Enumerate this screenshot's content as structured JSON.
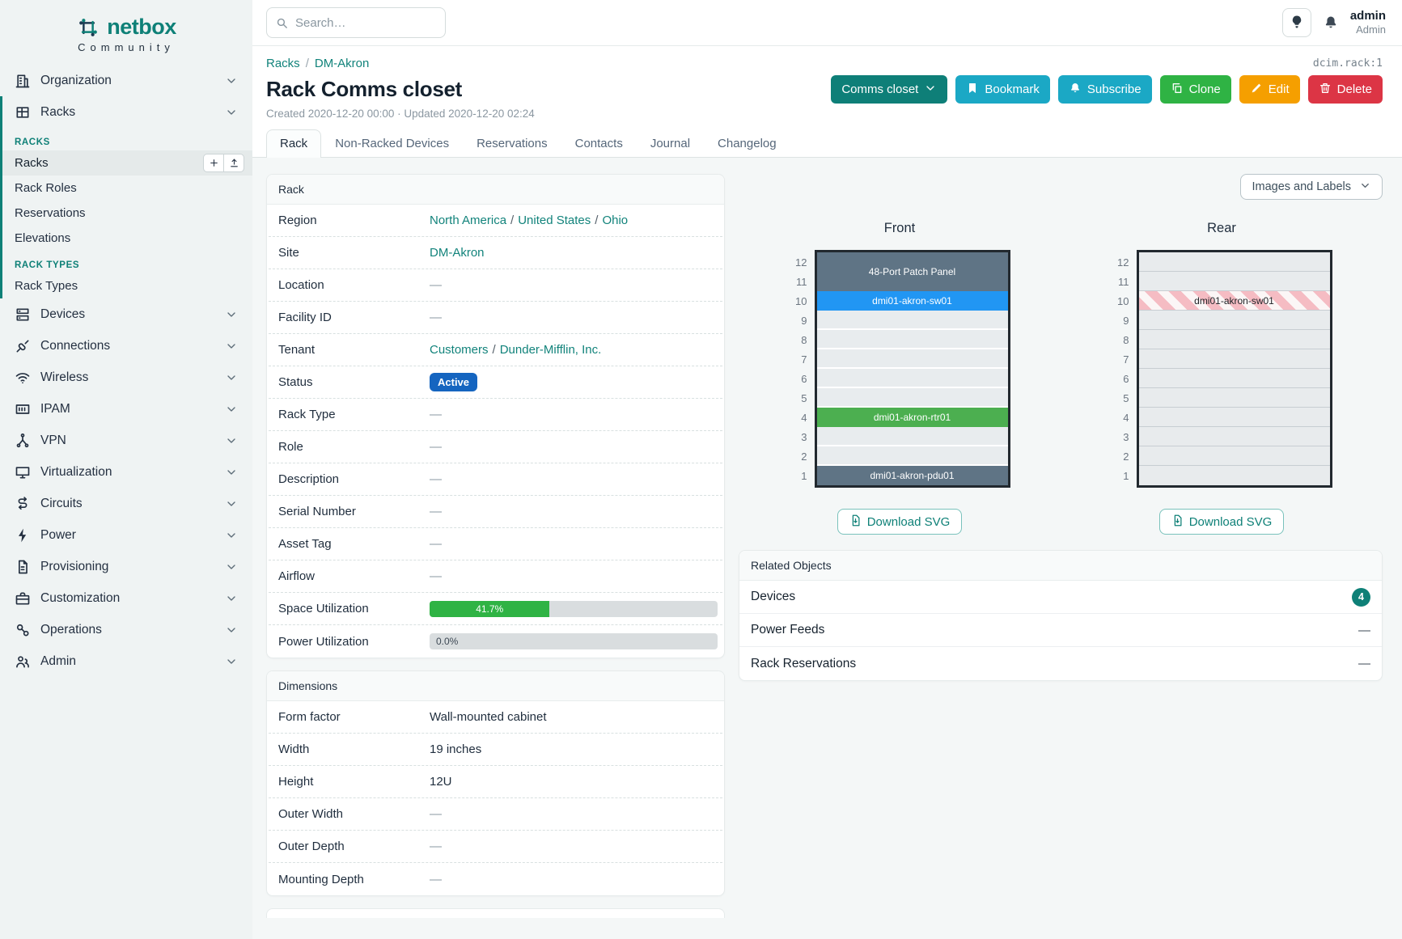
{
  "app": {
    "brand": "netbox",
    "brand_sub": "Community"
  },
  "topbar": {
    "search_placeholder": "Search…",
    "user_name": "admin",
    "user_role": "Admin"
  },
  "sidebar": {
    "top_items": [
      {
        "label": "Organization",
        "icon": "building-icon"
      },
      {
        "label": "Racks",
        "icon": "rack-icon"
      }
    ],
    "racks_menu": {
      "sections": [
        {
          "header": "RACKS",
          "items": [
            {
              "label": "Racks",
              "active": true
            },
            {
              "label": "Rack Roles"
            },
            {
              "label": "Reservations"
            },
            {
              "label": "Elevations"
            }
          ]
        },
        {
          "header": "RACK TYPES",
          "items": [
            {
              "label": "Rack Types"
            }
          ]
        }
      ]
    },
    "items": [
      {
        "label": "Devices",
        "icon": "devices-icon"
      },
      {
        "label": "Connections",
        "icon": "connections-icon"
      },
      {
        "label": "Wireless",
        "icon": "wireless-icon"
      },
      {
        "label": "IPAM",
        "icon": "ipam-icon"
      },
      {
        "label": "VPN",
        "icon": "vpn-icon"
      },
      {
        "label": "Virtualization",
        "icon": "virtualization-icon"
      },
      {
        "label": "Circuits",
        "icon": "circuits-icon"
      },
      {
        "label": "Power",
        "icon": "power-icon"
      },
      {
        "label": "Provisioning",
        "icon": "provisioning-icon"
      },
      {
        "label": "Customization",
        "icon": "customization-icon"
      },
      {
        "label": "Operations",
        "icon": "operations-icon"
      },
      {
        "label": "Admin",
        "icon": "admin-icon"
      }
    ]
  },
  "breadcrumb": {
    "items": [
      "Racks",
      "DM-Akron"
    ]
  },
  "object_id": "dcim.rack:1",
  "page": {
    "title": "Rack Comms closet",
    "meta": "Created 2020-12-20 00:00 · Updated 2020-12-20 02:24"
  },
  "actions": {
    "context": "Comms closet",
    "bookmark": "Bookmark",
    "subscribe": "Subscribe",
    "clone": "Clone",
    "edit": "Edit",
    "delete": "Delete"
  },
  "tabs": [
    {
      "label": "Rack",
      "active": true
    },
    {
      "label": "Non-Racked Devices"
    },
    {
      "label": "Reservations"
    },
    {
      "label": "Contacts"
    },
    {
      "label": "Journal"
    },
    {
      "label": "Changelog"
    }
  ],
  "rack_panel": {
    "title": "Rack",
    "rows": [
      {
        "label": "Region",
        "kind": "links",
        "parts": [
          "North America",
          "United States",
          "Ohio"
        ]
      },
      {
        "label": "Site",
        "kind": "links",
        "parts": [
          "DM-Akron"
        ]
      },
      {
        "label": "Location",
        "kind": "text",
        "value": "—"
      },
      {
        "label": "Facility ID",
        "kind": "text",
        "value": "—"
      },
      {
        "label": "Tenant",
        "kind": "links",
        "parts": [
          "Customers",
          "Dunder-Mifflin, Inc."
        ]
      },
      {
        "label": "Status",
        "kind": "badge",
        "value": "Active"
      },
      {
        "label": "Rack Type",
        "kind": "text",
        "value": "—"
      },
      {
        "label": "Role",
        "kind": "text",
        "value": "—"
      },
      {
        "label": "Description",
        "kind": "text",
        "value": "—"
      },
      {
        "label": "Serial Number",
        "kind": "text",
        "value": "—"
      },
      {
        "label": "Asset Tag",
        "kind": "text",
        "value": "—"
      },
      {
        "label": "Airflow",
        "kind": "text",
        "value": "—"
      },
      {
        "label": "Space Utilization",
        "kind": "progress",
        "percent": 41.7,
        "value": "41.7%"
      },
      {
        "label": "Power Utilization",
        "kind": "progress",
        "percent": 0,
        "value": "0.0%"
      }
    ]
  },
  "dimensions_panel": {
    "title": "Dimensions",
    "rows": [
      {
        "label": "Form factor",
        "kind": "text",
        "value": "Wall-mounted cabinet"
      },
      {
        "label": "Width",
        "kind": "text",
        "value": "19 inches"
      },
      {
        "label": "Height",
        "kind": "text",
        "value": "12U"
      },
      {
        "label": "Outer Width",
        "kind": "text",
        "value": "—"
      },
      {
        "label": "Outer Depth",
        "kind": "text",
        "value": "—"
      },
      {
        "label": "Mounting Depth",
        "kind": "text",
        "value": "—"
      }
    ]
  },
  "elevation": {
    "toggle_label": "Images and Labels",
    "download_label": "Download SVG",
    "units_total": 12,
    "front": {
      "title": "Front",
      "slots": [
        {
          "u": 2,
          "label": "48-Port Patch Panel",
          "color": "#5f7485"
        },
        {
          "u": 1,
          "label": "dmi01-akron-sw01",
          "color": "#2196f3"
        },
        {
          "u": 1
        },
        {
          "u": 1
        },
        {
          "u": 1
        },
        {
          "u": 1
        },
        {
          "u": 1
        },
        {
          "u": 1,
          "label": "dmi01-akron-rtr01",
          "color": "#4caf50"
        },
        {
          "u": 1
        },
        {
          "u": 1
        },
        {
          "u": 1,
          "label": "dmi01-akron-pdu01",
          "color": "#5f7485"
        }
      ]
    },
    "rear": {
      "title": "Rear",
      "slots": [
        {
          "u": 1
        },
        {
          "u": 1
        },
        {
          "u": 1,
          "label": "dmi01-akron-sw01",
          "striped": true
        },
        {
          "u": 1
        },
        {
          "u": 1
        },
        {
          "u": 1
        },
        {
          "u": 1
        },
        {
          "u": 1
        },
        {
          "u": 1
        },
        {
          "u": 1
        },
        {
          "u": 1
        },
        {
          "u": 1
        }
      ]
    }
  },
  "related_panel": {
    "title": "Related Objects",
    "rows": [
      {
        "label": "Devices",
        "count": "4"
      },
      {
        "label": "Power Feeds",
        "value": "—"
      },
      {
        "label": "Rack Reservations",
        "value": "—"
      }
    ]
  },
  "colors": {
    "accent_teal": "#0e8077",
    "link_teal": "#12837b",
    "status_active_blue": "#1565c0",
    "utilization_green": "#2fb344",
    "device_slate": "#5f7485",
    "device_blue": "#2196f3",
    "device_green": "#4caf50"
  }
}
